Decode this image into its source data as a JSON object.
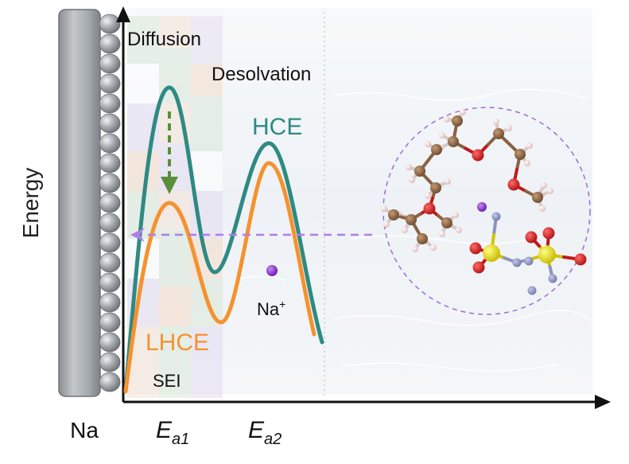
{
  "axis": {
    "y_label": "Energy",
    "x_tick_1_main": "E",
    "x_tick_1_sub": "a1",
    "x_tick_2_main": "E",
    "x_tick_2_sub": "a2"
  },
  "electrode": {
    "label": "Na",
    "color": "#9ea3a7"
  },
  "regions": {
    "diffusion": "Diffusion",
    "desolvation": "Desolvation",
    "sei": "SEI"
  },
  "curves": {
    "hce": {
      "label": "HCE",
      "color": "#2e8a83"
    },
    "lhce": {
      "label": "LHCE",
      "color": "#f5922f"
    }
  },
  "ion": {
    "label": "Na",
    "charge": "+",
    "color": "#8a2be2"
  },
  "arrows": {
    "transfer_color": "#b07de8",
    "reduction_color": "#5a8f3a"
  },
  "solvation_shell": {
    "border_color": "#9b6dd6"
  }
}
